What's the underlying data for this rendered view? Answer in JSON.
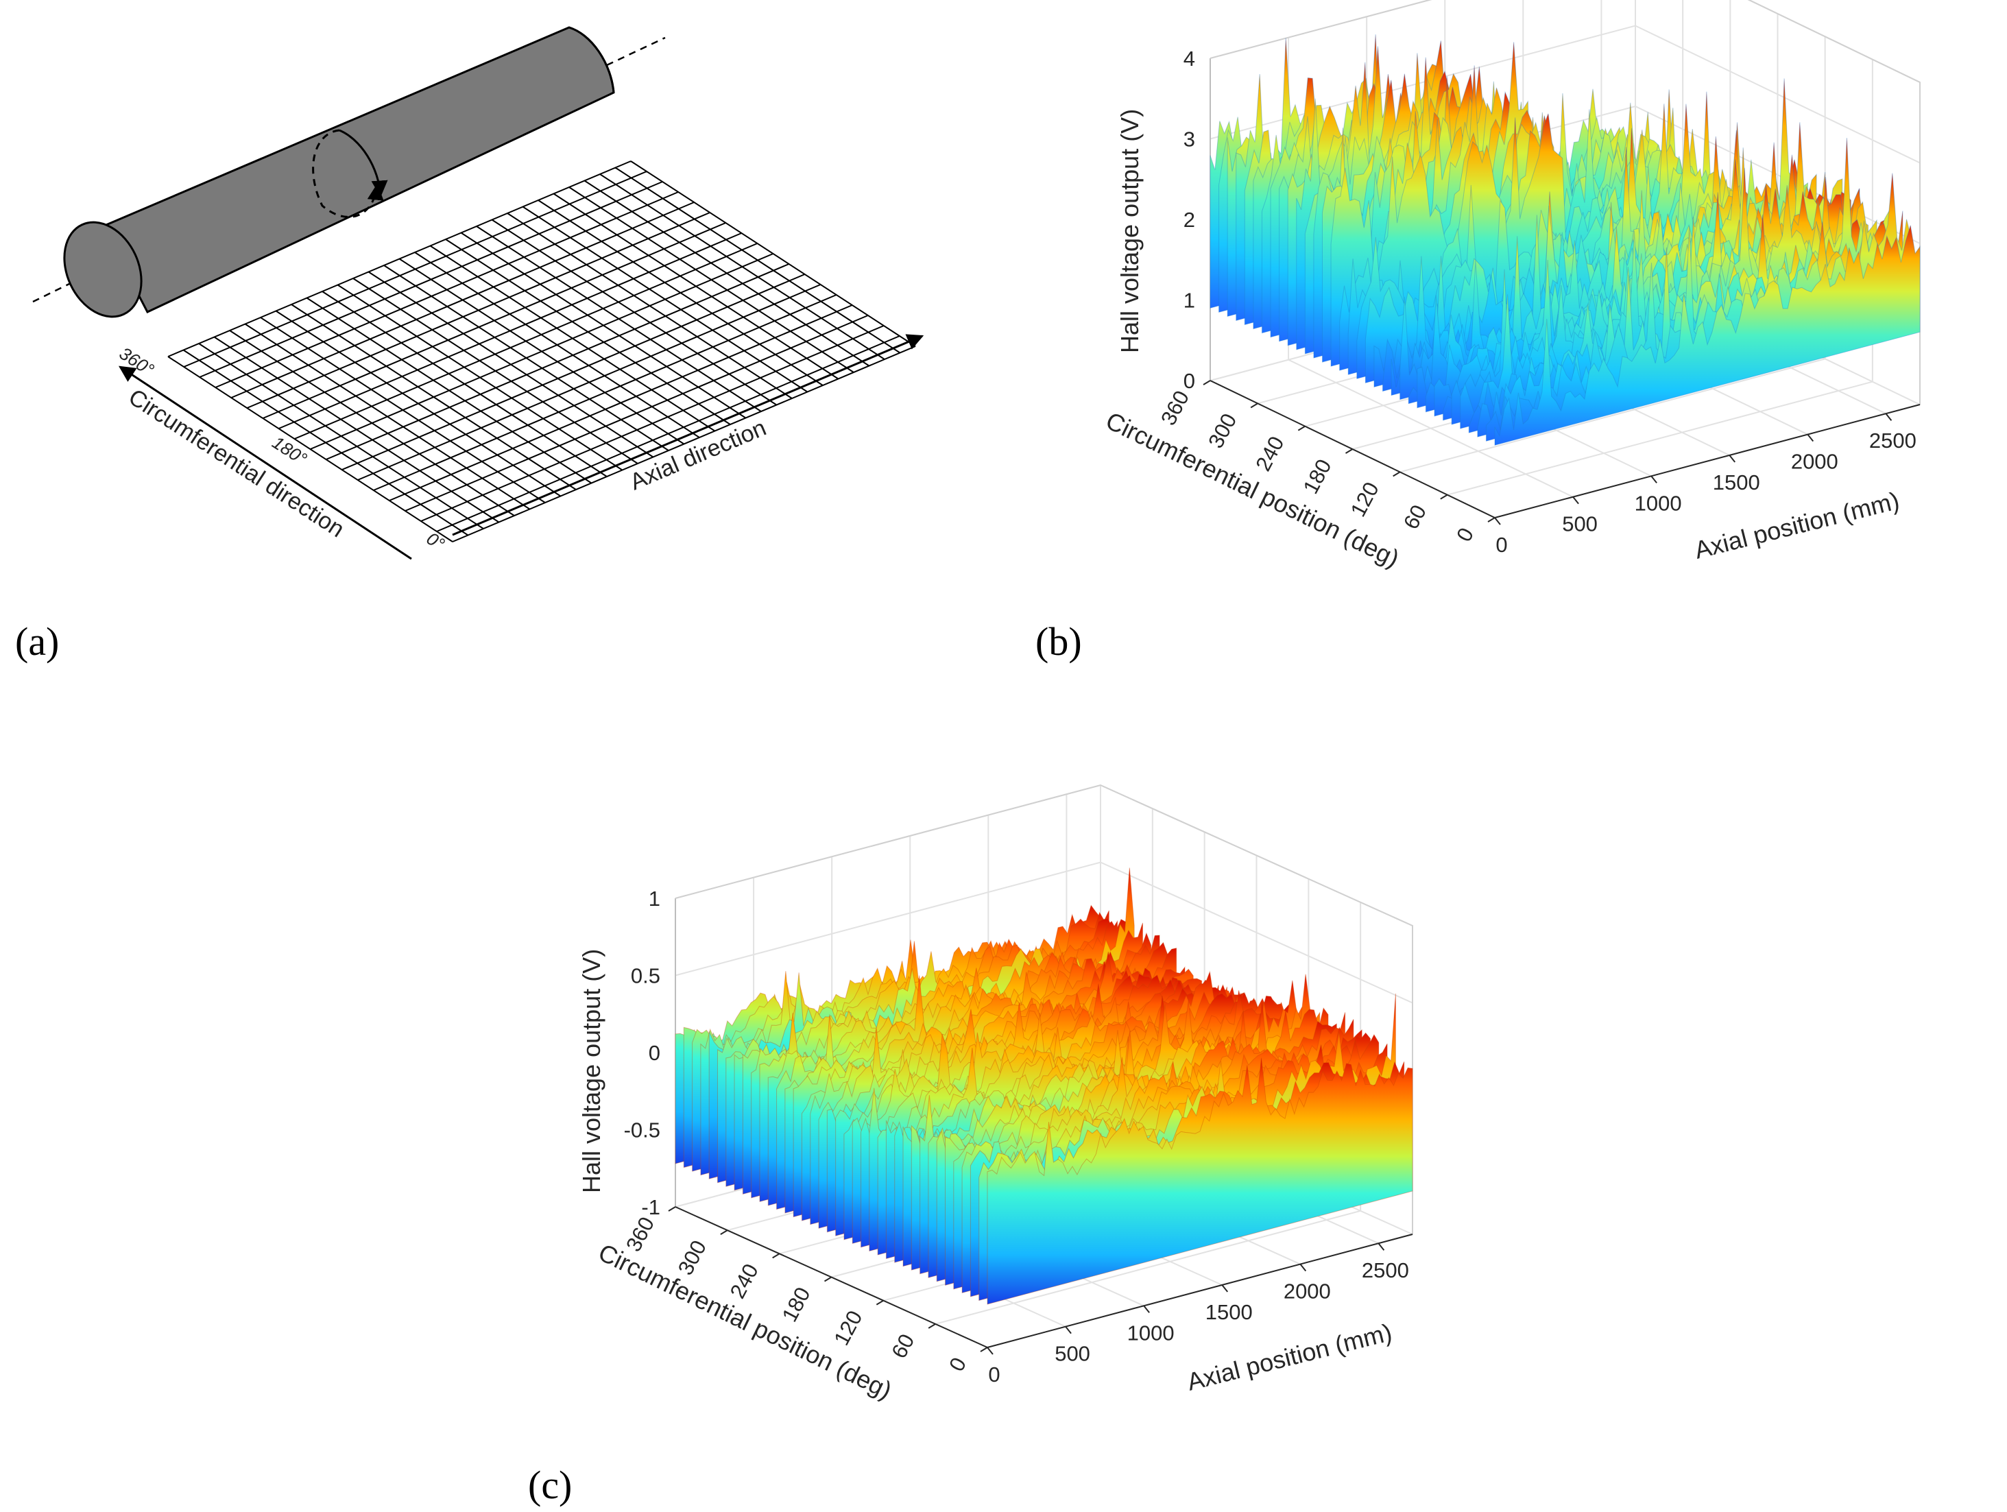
{
  "figure": {
    "panel_a": {
      "label": "(a)",
      "circumferential_label": "Circumferential direction",
      "axial_label": "Axial direction",
      "angle_360": "360°",
      "angle_180": "180°",
      "angle_0": "0°"
    },
    "panel_b": {
      "label": "(b)"
    },
    "panel_c": {
      "label": "(c)"
    }
  },
  "chart_data": [
    {
      "type": "surface",
      "panel": "(b)",
      "title": "",
      "zlabel": "Hall voltage output (V)",
      "ylabel": "Circumferential position (deg)",
      "xlabel": "Axial position (mm)",
      "x_ticks": [
        "0",
        "500",
        "1000",
        "1500",
        "2000",
        "2500"
      ],
      "y_ticks": [
        "0",
        "60",
        "120",
        "180",
        "240",
        "300",
        "360"
      ],
      "z_ticks": [
        "0",
        "1",
        "2",
        "3",
        "4"
      ],
      "xlim": [
        0,
        2500
      ],
      "ylim": [
        0,
        360
      ],
      "zlim": [
        0,
        4
      ],
      "colormap": "jet",
      "grid": true,
      "description_values": {
        "baseline_range_V": [
          1.0,
          2.6
        ],
        "peak_V": 4.1
      }
    },
    {
      "type": "surface",
      "panel": "(c)",
      "title": "",
      "zlabel": "Hall voltage output (V)",
      "ylabel": "Circumferential position (deg)",
      "xlabel": "Axial position (mm)",
      "x_ticks": [
        "0",
        "500",
        "1000",
        "1500",
        "2000",
        "2500"
      ],
      "y_ticks": [
        "0",
        "60",
        "120",
        "180",
        "240",
        "300",
        "360"
      ],
      "z_ticks": [
        "-1",
        "-0.5",
        "0",
        "0.5",
        "1"
      ],
      "xlim": [
        0,
        2500
      ],
      "ylim": [
        0,
        360
      ],
      "zlim": [
        -1,
        1
      ],
      "colormap": "jet",
      "grid": true,
      "description_values": {
        "top_range_V": [
          -0.1,
          0.3
        ],
        "peak_V": 1.15
      }
    }
  ]
}
